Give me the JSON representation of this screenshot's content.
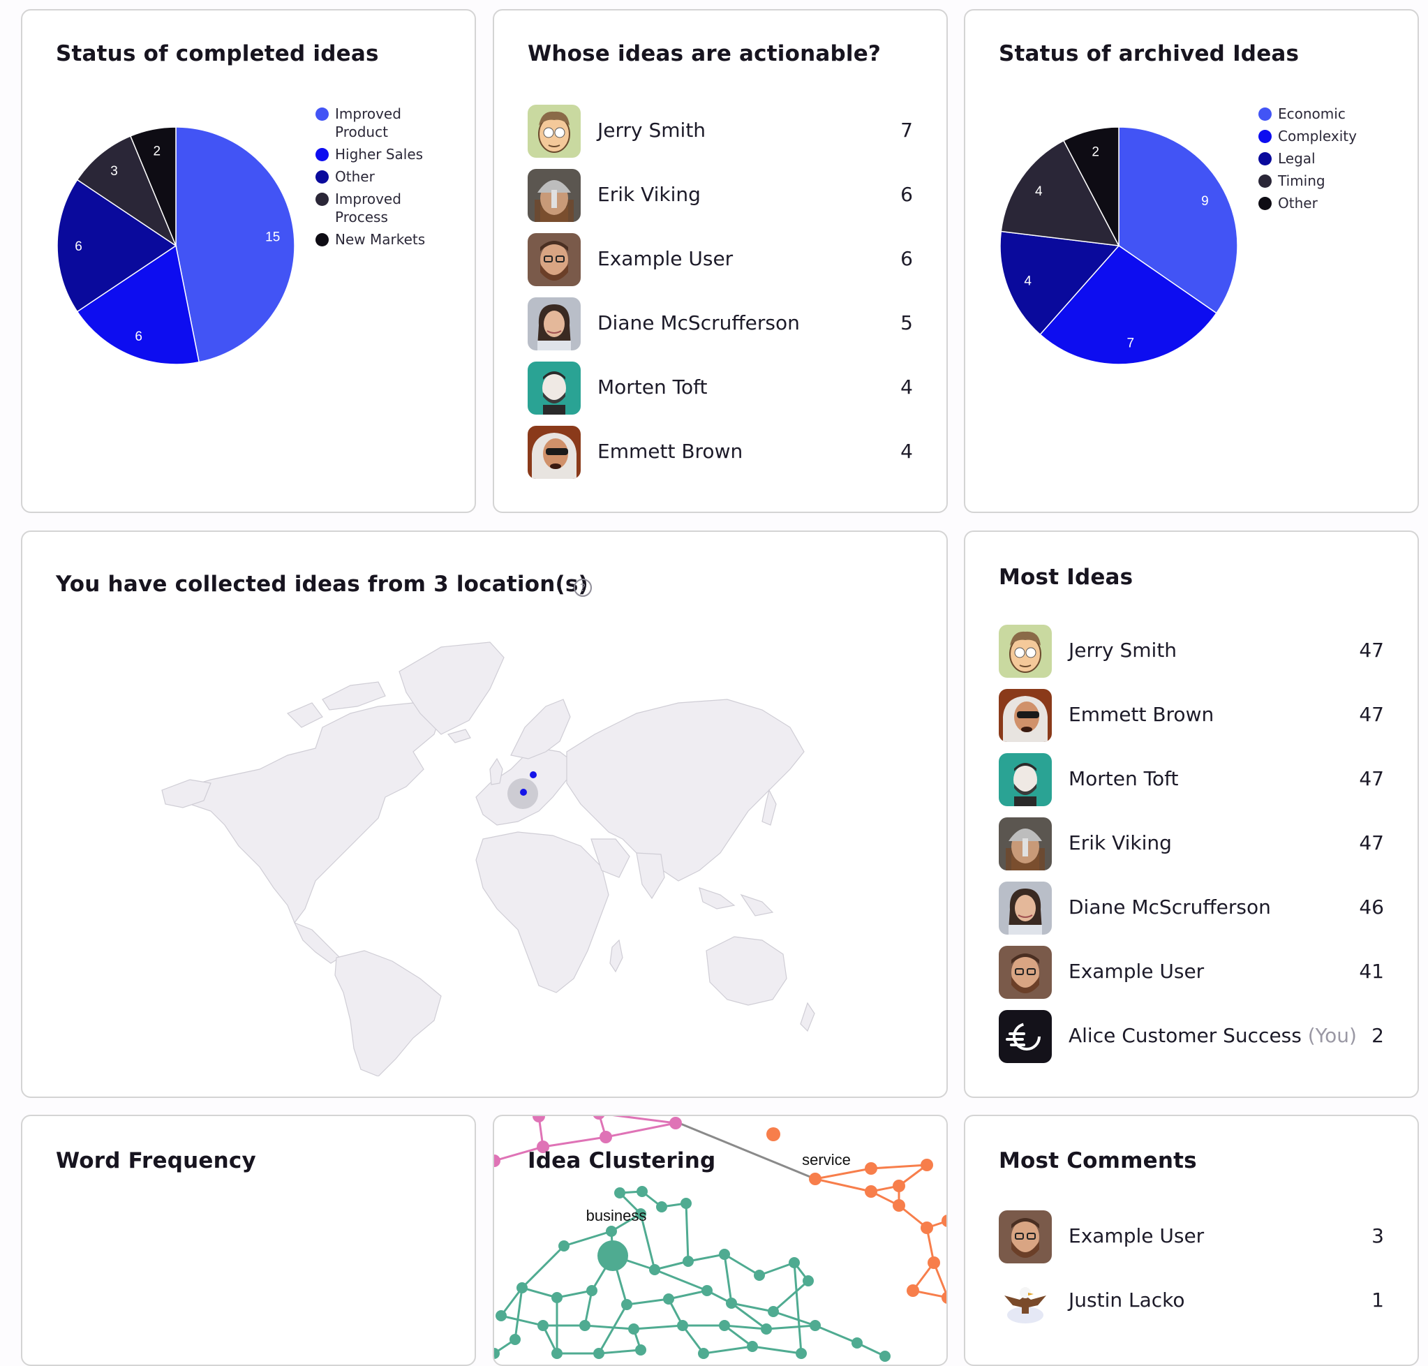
{
  "completed": {
    "title": "Status of completed ideas",
    "chart_data": {
      "type": "pie",
      "categories": [
        "Improved Product",
        "Higher Sales",
        "Other",
        "Improved Process",
        "New Markets"
      ],
      "values": [
        15,
        6,
        6,
        3,
        2
      ],
      "colors": [
        "#4254f5",
        "#0d0df0",
        "#0a0a9c",
        "#2a2637",
        "#0e0c14"
      ],
      "legend_position": "top-right"
    }
  },
  "actionable": {
    "title": "Whose ideas are actionable?",
    "people": [
      {
        "name": "Jerry Smith",
        "count": "7",
        "avatar": "cartoon"
      },
      {
        "name": "Erik Viking",
        "count": "6",
        "avatar": "viking"
      },
      {
        "name": "Example User",
        "count": "6",
        "avatar": "bearded"
      },
      {
        "name": "Diane McScrufferson",
        "count": "5",
        "avatar": "woman"
      },
      {
        "name": "Morten Toft",
        "count": "4",
        "avatar": "teal"
      },
      {
        "name": "Emmett Brown",
        "count": "4",
        "avatar": "emmett"
      }
    ]
  },
  "archived": {
    "title": "Status of archived Ideas",
    "chart_data": {
      "type": "pie",
      "categories": [
        "Economic",
        "Complexity",
        "Legal",
        "Timing",
        "Other"
      ],
      "values": [
        9,
        7,
        4,
        4,
        2
      ],
      "colors": [
        "#4254f5",
        "#0d0df0",
        "#0a0a9c",
        "#2a2637",
        "#0e0c14"
      ],
      "legend_position": "top-right"
    }
  },
  "locations": {
    "title": "You have collected ideas from 3 location(s)",
    "help_icon": "question-circle-icon"
  },
  "most_ideas": {
    "title": "Most Ideas",
    "people": [
      {
        "name": "Jerry Smith",
        "count": "47",
        "avatar": "cartoon"
      },
      {
        "name": "Emmett Brown",
        "count": "47",
        "avatar": "emmett"
      },
      {
        "name": "Morten Toft",
        "count": "47",
        "avatar": "teal"
      },
      {
        "name": "Erik Viking",
        "count": "47",
        "avatar": "viking"
      },
      {
        "name": "Diane McScrufferson",
        "count": "46",
        "avatar": "woman"
      },
      {
        "name": "Example User",
        "count": "41",
        "avatar": "bearded"
      },
      {
        "name": "Alice Customer Success",
        "you": "(You)",
        "count": "2",
        "avatar": "logo"
      }
    ]
  },
  "word_frequency": {
    "title": "Word Frequency"
  },
  "idea_clustering": {
    "title": "Idea Clustering",
    "labels": [
      "business",
      "service"
    ],
    "colors": {
      "green": "#4fab91",
      "orange": "#f77e4b",
      "pink": "#df73b6",
      "grey": "#8a8a8a"
    }
  },
  "most_comments": {
    "title": "Most Comments",
    "people": [
      {
        "name": "Example User",
        "count": "3",
        "avatar": "bearded"
      },
      {
        "name": "Justin Lacko",
        "count": "1",
        "avatar": "eagle"
      }
    ]
  }
}
